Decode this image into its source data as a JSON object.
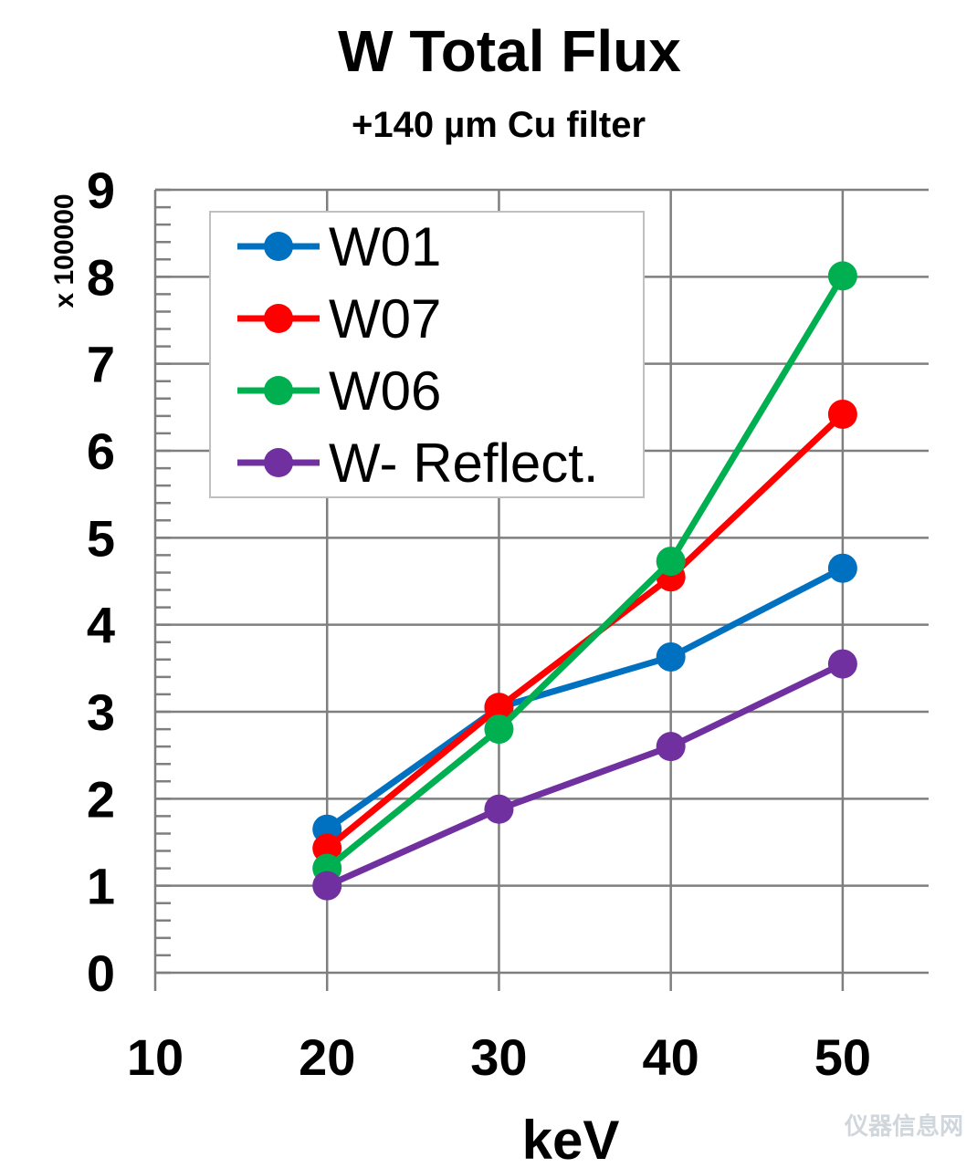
{
  "chart_data": {
    "type": "line",
    "title": "W Total Flux",
    "subtitle": "+140 µm Cu filter",
    "xlabel": "keV",
    "ylabel": "",
    "y_multiplier_label": "x 100000",
    "xlim": [
      10,
      55
    ],
    "ylim": [
      0,
      9
    ],
    "x_ticks": [
      10,
      20,
      30,
      40,
      50
    ],
    "y_ticks": [
      0,
      1,
      2,
      3,
      4,
      5,
      6,
      7,
      8,
      9
    ],
    "y_minor_step": 0.2,
    "grid": true,
    "legend_position": "top-left",
    "x": [
      20,
      30,
      40,
      50
    ],
    "series": [
      {
        "name": "W01",
        "color": "#0070c0",
        "values": [
          1.65,
          3.05,
          3.63,
          4.65
        ]
      },
      {
        "name": "W07",
        "color": "#ff0000",
        "values": [
          1.43,
          3.05,
          4.55,
          6.42
        ]
      },
      {
        "name": "W06",
        "color": "#00b050",
        "values": [
          1.2,
          2.8,
          4.73,
          8.01
        ]
      },
      {
        "name": "W- Reflect.",
        "color": "#7030a0",
        "values": [
          1.0,
          1.88,
          2.6,
          3.55
        ]
      }
    ]
  },
  "watermark": {
    "text": "仪器信息网"
  }
}
